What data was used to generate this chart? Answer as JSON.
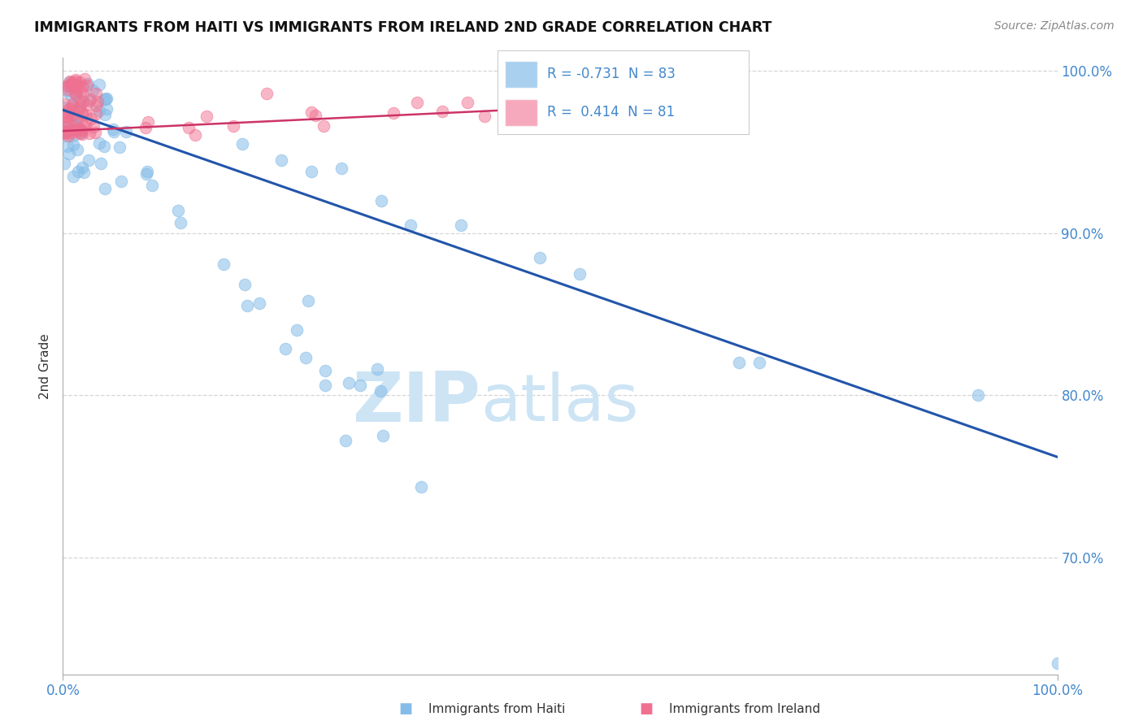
{
  "title": "IMMIGRANTS FROM HAITI VS IMMIGRANTS FROM IRELAND 2ND GRADE CORRELATION CHART",
  "source": "Source: ZipAtlas.com",
  "ylabel": "2nd Grade",
  "xlabel_blue": "Immigrants from Haiti",
  "xlabel_pink": "Immigrants from Ireland",
  "legend_blue_R": "-0.731",
  "legend_blue_N": "83",
  "legend_pink_R": "0.414",
  "legend_pink_N": "81",
  "xlim": [
    0.0,
    1.0
  ],
  "ylim": [
    0.628,
    1.008
  ],
  "yticks": [
    0.7,
    0.8,
    0.9,
    1.0
  ],
  "xticks": [
    0.0,
    1.0
  ],
  "blue_trend_x": [
    0.0,
    1.0
  ],
  "blue_trend_y": [
    0.976,
    0.762
  ],
  "pink_trend_x": [
    0.0,
    0.45
  ],
  "pink_trend_y": [
    0.963,
    0.976
  ],
  "blue_color": "#85bce8",
  "blue_line_color": "#2255aa",
  "pink_color": "#f07090",
  "pink_line_color": "#cc3366",
  "watermark_zip": "ZIP",
  "watermark_atlas": "atlas",
  "watermark_color": "#cde4f5",
  "background_color": "#ffffff",
  "grid_color": "#cccccc",
  "tick_color": "#4488cc",
  "title_color": "#111111",
  "source_color": "#888888",
  "ylabel_color": "#333333"
}
